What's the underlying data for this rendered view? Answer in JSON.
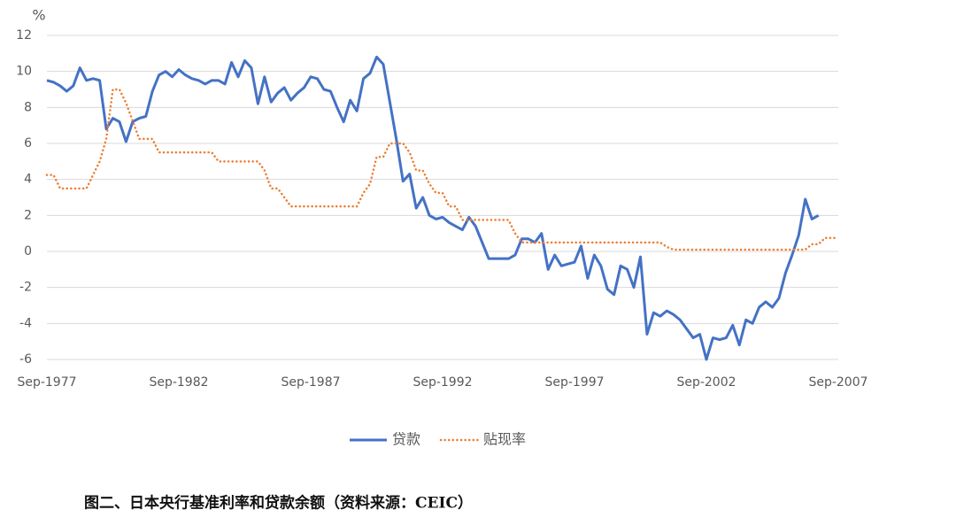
{
  "chart_data": {
    "type": "line",
    "y_label": "%",
    "caption": "图二、日本央行基准利率和贷款余额（资料来源：CEIC）",
    "categories": [
      "Sep-1977",
      null,
      null,
      null,
      null,
      null,
      null,
      null,
      null,
      null,
      null,
      null,
      null,
      null,
      null,
      null,
      null,
      null,
      null,
      null,
      "Sep-1982",
      null,
      null,
      null,
      null,
      null,
      null,
      null,
      null,
      null,
      null,
      null,
      null,
      null,
      null,
      null,
      null,
      null,
      null,
      null,
      "Sep-1987",
      null,
      null,
      null,
      null,
      null,
      null,
      null,
      null,
      null,
      null,
      null,
      null,
      null,
      null,
      null,
      null,
      null,
      null,
      null,
      "Sep-1992",
      null,
      null,
      null,
      null,
      null,
      null,
      null,
      null,
      null,
      null,
      null,
      null,
      null,
      null,
      null,
      null,
      null,
      null,
      null,
      "Sep-1997",
      null,
      null,
      null,
      null,
      null,
      null,
      null,
      null,
      null,
      null,
      null,
      null,
      null,
      null,
      null,
      null,
      null,
      null,
      null,
      "Sep-2002",
      null,
      null,
      null,
      null,
      null,
      null,
      null,
      null,
      null,
      null,
      null,
      null,
      null,
      null,
      null,
      null,
      null,
      null,
      null,
      "Sep-2007"
    ],
    "series": [
      {
        "name": "贷款",
        "color": "#4472c4",
        "dash": "solid",
        "values": [
          9.5,
          9.4,
          9.2,
          8.9,
          9.2,
          10.2,
          9.5,
          9.6,
          9.5,
          6.8,
          7.4,
          7.2,
          6.1,
          7.2,
          7.4,
          7.5,
          8.9,
          9.8,
          10.0,
          9.7,
          10.1,
          9.8,
          9.6,
          9.5,
          9.3,
          9.5,
          9.5,
          9.3,
          10.5,
          9.7,
          10.6,
          10.2,
          8.2,
          9.7,
          8.3,
          8.8,
          9.1,
          8.4,
          8.8,
          9.1,
          9.7,
          9.6,
          9.0,
          8.9,
          8.0,
          7.2,
          8.4,
          7.8,
          9.6,
          9.9,
          10.8,
          10.4,
          8.3,
          6.2,
          3.9,
          4.3,
          2.4,
          3.0,
          2.0,
          1.8,
          1.9,
          1.6,
          1.4,
          1.2,
          1.9,
          1.4,
          0.5,
          -0.4,
          -0.4,
          -0.4,
          -0.4,
          -0.2,
          0.7,
          0.7,
          0.5,
          1.0,
          -1.0,
          -0.2,
          -0.8,
          -0.7,
          -0.6,
          0.3,
          -1.5,
          -0.2,
          -0.8,
          -2.1,
          -2.4,
          -0.8,
          -1.0,
          -2.0,
          -0.3,
          -4.6,
          -3.4,
          -3.6,
          -3.3,
          -3.5,
          -3.8,
          -4.3,
          -4.8,
          -4.6,
          -6.0,
          -4.8,
          -4.9,
          -4.8,
          -4.1,
          -5.2,
          -3.8,
          -4.0,
          -3.1,
          -2.8,
          -3.1,
          -2.6,
          -1.2,
          -0.2,
          0.9,
          2.9,
          1.8,
          2.0,
          null,
          null,
          null
        ]
      },
      {
        "name": "贴现率",
        "color": "#ed7d31",
        "dash": "dotted",
        "values": [
          4.25,
          4.25,
          3.5,
          3.5,
          3.5,
          3.5,
          3.5,
          4.25,
          5.0,
          6.25,
          9.0,
          9.0,
          8.25,
          7.25,
          6.25,
          6.25,
          6.25,
          5.5,
          5.5,
          5.5,
          5.5,
          5.5,
          5.5,
          5.5,
          5.5,
          5.5,
          5.0,
          5.0,
          5.0,
          5.0,
          5.0,
          5.0,
          5.0,
          4.5,
          3.5,
          3.5,
          3.0,
          2.5,
          2.5,
          2.5,
          2.5,
          2.5,
          2.5,
          2.5,
          2.5,
          2.5,
          2.5,
          2.5,
          3.25,
          3.75,
          5.25,
          5.25,
          6.0,
          6.0,
          6.0,
          5.5,
          4.5,
          4.5,
          3.75,
          3.25,
          3.25,
          2.5,
          2.5,
          1.75,
          1.75,
          1.75,
          1.75,
          1.75,
          1.75,
          1.75,
          1.75,
          1.0,
          0.5,
          0.5,
          0.5,
          0.5,
          0.5,
          0.5,
          0.5,
          0.5,
          0.5,
          0.5,
          0.5,
          0.5,
          0.5,
          0.5,
          0.5,
          0.5,
          0.5,
          0.5,
          0.5,
          0.5,
          0.5,
          0.5,
          0.25,
          0.1,
          0.1,
          0.1,
          0.1,
          0.1,
          0.1,
          0.1,
          0.1,
          0.1,
          0.1,
          0.1,
          0.1,
          0.1,
          0.1,
          0.1,
          0.1,
          0.1,
          0.1,
          0.1,
          0.1,
          0.1,
          0.4,
          0.4,
          0.75,
          0.75,
          0.75
        ]
      }
    ],
    "ylim": [
      -6,
      12
    ],
    "yticks": [
      -6,
      -4,
      -2,
      0,
      2,
      4,
      6,
      8,
      10,
      12
    ],
    "grid": true,
    "legend": "bottom"
  }
}
